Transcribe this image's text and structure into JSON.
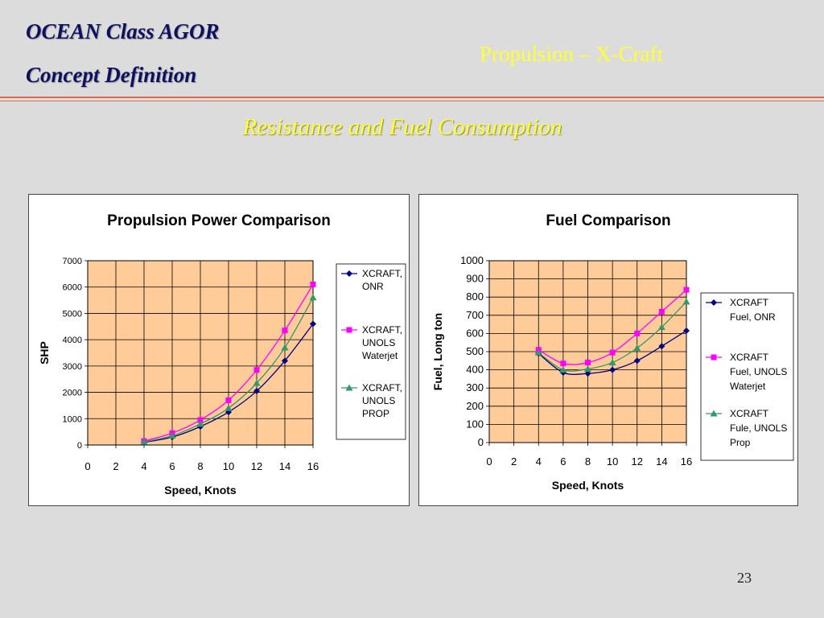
{
  "header": {
    "line1": "OCEAN Class AGOR",
    "line2": "Concept Definition",
    "section": "Propulsion – X-Craft"
  },
  "slide_title": "Resistance and Fuel Consumption",
  "page_number": "23",
  "colors": {
    "background": "#dcdcdc",
    "plot_area": "#ffcc99",
    "series_onr": "#000080",
    "series_waterjet": "#ff00ff",
    "series_prop": "#339966",
    "header_text": "#101060",
    "yellow_text": "#ffff33",
    "rule": "#d96b4a"
  },
  "chart_data": [
    {
      "type": "line",
      "title": "Propulsion Power Comparison",
      "xlabel": "Speed, Knots",
      "ylabel": "SHP",
      "xlim": [
        0,
        16
      ],
      "ylim": [
        0,
        7000
      ],
      "xticks": [
        "0",
        "2",
        "4",
        "6",
        "8",
        "10",
        "12",
        "14",
        "16"
      ],
      "yticks": [
        "0",
        "1000",
        "2000",
        "3000",
        "4000",
        "5000",
        "6000",
        "7000"
      ],
      "grid": true,
      "legend_position": "right",
      "x": [
        4,
        6,
        8,
        10,
        12,
        14,
        16
      ],
      "series": [
        {
          "name": "XCRAFT, ONR",
          "legend_lines": [
            "XCRAFT,",
            "ONR"
          ],
          "marker": "diamond",
          "color": "#000080",
          "values": [
            100,
            300,
            700,
            1250,
            2050,
            3200,
            4600
          ]
        },
        {
          "name": "XCRAFT, UNOLS Waterjet",
          "legend_lines": [
            "XCRAFT,",
            "UNOLS",
            "Waterjet"
          ],
          "marker": "square",
          "color": "#ff00ff",
          "values": [
            150,
            450,
            950,
            1700,
            2850,
            4350,
            6100
          ]
        },
        {
          "name": "XCRAFT, UNOLS PROP",
          "legend_lines": [
            "XCRAFT,",
            "UNOLS",
            "PROP"
          ],
          "marker": "triangle",
          "color": "#339966",
          "values": [
            120,
            350,
            800,
            1400,
            2350,
            3700,
            5600
          ]
        }
      ]
    },
    {
      "type": "line",
      "title": "Fuel Comparison",
      "xlabel": "Speed, Knots",
      "ylabel": "Fuel, Long ton",
      "xlim": [
        0,
        16
      ],
      "ylim": [
        0,
        1000
      ],
      "xticks": [
        "0",
        "2",
        "4",
        "6",
        "8",
        "10",
        "12",
        "14",
        "16"
      ],
      "yticks": [
        "0",
        "100",
        "200",
        "300",
        "400",
        "500",
        "600",
        "700",
        "800",
        "900",
        "1000"
      ],
      "grid": true,
      "legend_position": "right",
      "x": [
        4,
        6,
        8,
        10,
        12,
        14,
        16
      ],
      "series": [
        {
          "name": "XCRAFT Fuel, ONR",
          "legend_lines": [
            "XCRAFT",
            "Fuel, ONR"
          ],
          "marker": "diamond",
          "color": "#000080",
          "values": [
            490,
            385,
            380,
            400,
            450,
            530,
            615
          ]
        },
        {
          "name": "XCRAFT Fuel, UNOLS Waterjet",
          "legend_lines": [
            "XCRAFT",
            "Fuel, UNOLS",
            "Waterjet"
          ],
          "marker": "square",
          "color": "#ff00ff",
          "values": [
            510,
            435,
            440,
            495,
            600,
            720,
            840
          ]
        },
        {
          "name": "XCRAFT Fule, UNOLS Prop",
          "legend_lines": [
            "XCRAFT",
            "Fule, UNOLS",
            "Prop"
          ],
          "marker": "triangle",
          "color": "#339966",
          "values": [
            495,
            400,
            405,
            440,
            520,
            635,
            775
          ]
        }
      ]
    }
  ]
}
